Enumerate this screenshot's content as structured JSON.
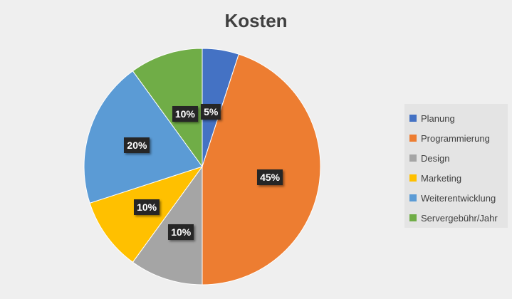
{
  "chart_data": {
    "type": "pie",
    "title": "Kosten",
    "categories": [
      "Planung",
      "Programmierung",
      "Design",
      "Marketing",
      "Weiterentwicklung",
      "Servergebühr/Jahr"
    ],
    "values": [
      5,
      45,
      10,
      10,
      20,
      10
    ],
    "data_labels": [
      "5%",
      "45%",
      "10%",
      "10%",
      "20%",
      "10%"
    ],
    "colors": [
      "#4472c4",
      "#ed7d31",
      "#a5a5a5",
      "#ffc000",
      "#5b9bd5",
      "#70ad47"
    ],
    "legend_position": "right",
    "start_angle": "12 o'clock",
    "direction": "clockwise"
  }
}
